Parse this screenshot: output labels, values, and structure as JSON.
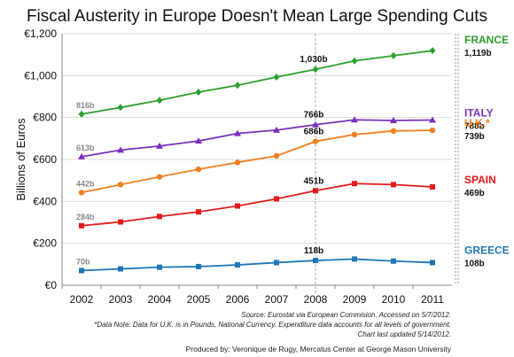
{
  "chart_data": {
    "type": "line",
    "title": "Fiscal Austerity in Europe Doesn't Mean Large Spending Cuts",
    "ylabel": "Billions of Euros",
    "xlabel": "",
    "x": [
      2002,
      2003,
      2004,
      2005,
      2006,
      2007,
      2008,
      2009,
      2010,
      2011
    ],
    "ylim": [
      0,
      1200
    ],
    "yticks": [
      0,
      200,
      400,
      600,
      800,
      1000,
      1200
    ],
    "ytick_labels": [
      "€0",
      "€200",
      "€400",
      "€600",
      "€800",
      "€1,000",
      "€1,200"
    ],
    "grid": "horizontal",
    "highlight_x": 2008,
    "series": [
      {
        "name": "FRANCE",
        "color": "#2ca02c",
        "marker": "diamond",
        "values": [
          816,
          848,
          882,
          921,
          954,
          993,
          1030,
          1070,
          1095,
          1119
        ],
        "start_label": "816b",
        "mid_label": "1,030b",
        "end_label": "1,119b"
      },
      {
        "name": "ITALY",
        "color": "#7b2fbe",
        "marker": "triangle",
        "values": [
          613,
          645,
          664,
          688,
          724,
          740,
          766,
          789,
          786,
          788
        ],
        "start_label": "613b",
        "mid_label": "766b",
        "end_label": "788b"
      },
      {
        "name": "U.K.*",
        "color": "#f07f1d",
        "marker": "circle",
        "values": [
          442,
          480,
          517,
          553,
          586,
          617,
          686,
          719,
          736,
          739
        ],
        "start_label": "442b",
        "mid_label": "686b",
        "end_label": "739b"
      },
      {
        "name": "SPAIN",
        "color": "#e31a1c",
        "marker": "square",
        "values": [
          284,
          302,
          328,
          350,
          378,
          412,
          451,
          485,
          480,
          469
        ],
        "start_label": "284b",
        "mid_label": "451b",
        "end_label": "469b"
      },
      {
        "name": "GREECE",
        "color": "#1f77b4",
        "marker": "square",
        "values": [
          70,
          78,
          86,
          89,
          97,
          108,
          118,
          125,
          115,
          108
        ],
        "start_label": "70b",
        "mid_label": "118b",
        "end_label": "108b"
      }
    ],
    "notes": [
      "Source: Eurostat via European Commision. Accessed on 5/7/2012.",
      "*Data Note: Data for U.K. is in Pounds, National Currency. Expenditure data accounts for all levels of government.",
      "Chart last updated 5/14/2012."
    ],
    "credit": "Produced by: Veronique de Rugy, Mercatus Center at George Mason University"
  }
}
